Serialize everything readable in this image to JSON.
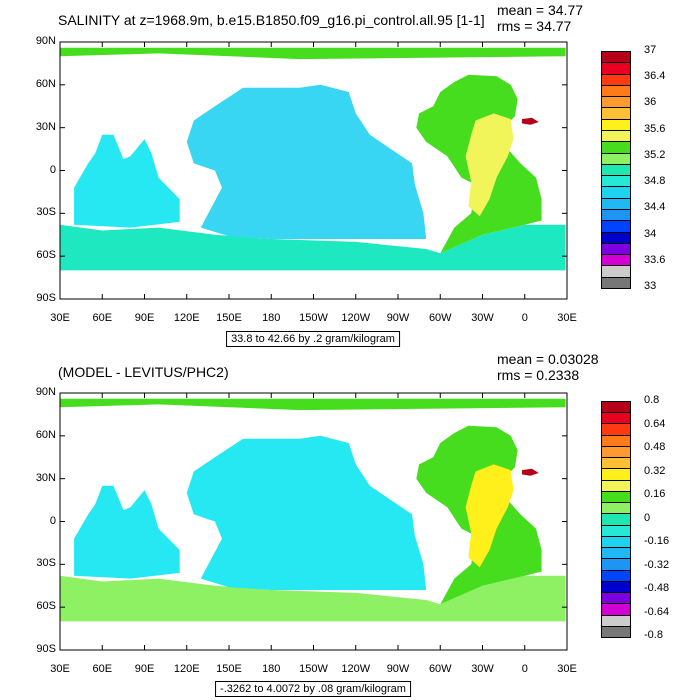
{
  "panels": [
    {
      "title": "SALINITY at z=1968.9m, b.e15.B1850.f09_g16.pi_control.all.95 [1-1]",
      "stats": [
        "mean = 34.77",
        "rms = 34.77"
      ],
      "caption": "33.8 to 42.66 by .2 gram/kilogram",
      "y_ticks": [
        "90N",
        "60N",
        "30N",
        "0",
        "30S",
        "60S",
        "90S"
      ],
      "x_ticks": [
        "30E",
        "60E",
        "90E",
        "120E",
        "150E",
        "180",
        "150W",
        "120W",
        "90W",
        "60W",
        "30W",
        "0",
        "30E"
      ],
      "colorbar": {
        "labels": [
          "37",
          "36.4",
          "36",
          "35.6",
          "35.2",
          "34.8",
          "34.4",
          "34",
          "33.6",
          "33"
        ],
        "colors": [
          "#b5001a",
          "#e8001e",
          "#ff3a10",
          "#ff7a1a",
          "#ff9a30",
          "#ffc035",
          "#ffef1a",
          "#f2f55a",
          "#46dd1e",
          "#8ef063",
          "#1ee8b0",
          "#26e8d6",
          "#1ed2f0",
          "#20b8f5",
          "#1e94f5",
          "#0044ff",
          "#0000cc",
          "#7d00e0",
          "#d200d2",
          "#cccccc",
          "#777777"
        ]
      },
      "field": {
        "ocean": "#26e8f2",
        "pacific": "#38d6f2",
        "atlantic": "#46dd1e",
        "southern": "#1ee8c0",
        "arctic": "#46dd1e",
        "medit": "#b5001a",
        "atl_subtrop": "#f2f55a"
      }
    },
    {
      "title": "(MODEL - LEVITUS/PHC2)",
      "stats": [
        "mean = 0.03028",
        "rms = 0.2338"
      ],
      "caption": "-.3262 to 4.0072 by .08 gram/kilogram",
      "y_ticks": [
        "90N",
        "60N",
        "30N",
        "0",
        "30S",
        "60S",
        "90S"
      ],
      "x_ticks": [
        "30E",
        "60E",
        "90E",
        "120E",
        "150E",
        "180",
        "150W",
        "120W",
        "90W",
        "60W",
        "30W",
        "0",
        "30E"
      ],
      "colorbar": {
        "labels": [
          "0.8",
          "0.64",
          "0.48",
          "0.32",
          "0.16",
          "0",
          "-0.16",
          "-0.32",
          "-0.48",
          "-0.64",
          "-0.8"
        ],
        "colors": [
          "#b5001a",
          "#e8001e",
          "#ff3a10",
          "#ff7a1a",
          "#ff9a30",
          "#ffc035",
          "#ffef1a",
          "#f2f55a",
          "#46dd1e",
          "#8ef063",
          "#1ee8b0",
          "#26e8d6",
          "#1ed2f0",
          "#20b8f5",
          "#1e94f5",
          "#0044ff",
          "#0000cc",
          "#7d00e0",
          "#d200d2",
          "#cccccc",
          "#777777"
        ]
      },
      "field": {
        "ocean": "#26e8f2",
        "pacific": "#26e8f2",
        "atlantic": "#46dd1e",
        "southern": "#8ef063",
        "arctic": "#46dd1e",
        "medit": "#b5001a",
        "atl_subtrop": "#ffef1a"
      }
    }
  ]
}
